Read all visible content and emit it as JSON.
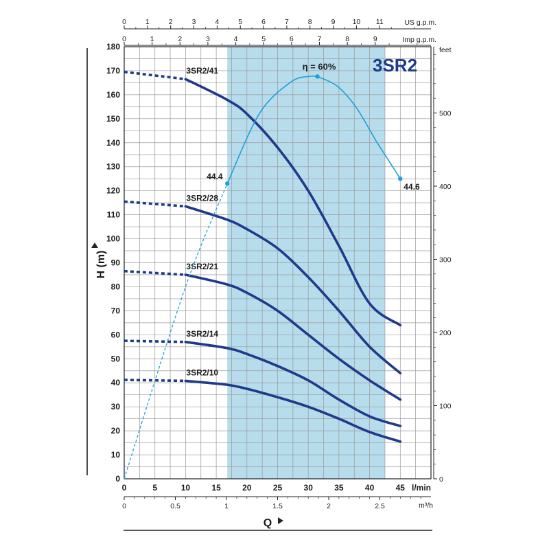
{
  "chart_data": {
    "type": "line",
    "title": "3SR2",
    "ylabel": "H (m)",
    "xlabel": "Q",
    "x_unit_primary": "l/min",
    "x_unit_m3h": "m³/h",
    "x_unit_us": "US g.p.m.",
    "x_unit_imp": "Imp g.p.m.",
    "y_unit_right": "feet",
    "xlim": [
      0,
      50
    ],
    "ylim": [
      0,
      180
    ],
    "grid": true,
    "x_ticks": [
      "0",
      "5",
      "10",
      "15",
      "20",
      "25",
      "30",
      "35",
      "40",
      "45"
    ],
    "y_ticks": [
      "0",
      "10",
      "20",
      "30",
      "40",
      "50",
      "60",
      "70",
      "80",
      "90",
      "100",
      "110",
      "120",
      "130",
      "140",
      "150",
      "160",
      "170",
      "180"
    ],
    "m3h_ticks": [
      "0",
      "0.5",
      "1",
      "1.5",
      "2",
      "2.5"
    ],
    "us_ticks": [
      "0",
      "1",
      "2",
      "3",
      "4",
      "5",
      "6",
      "7",
      "8",
      "9",
      "10",
      "11"
    ],
    "imp_ticks": [
      "0",
      "1",
      "2",
      "3",
      "4",
      "5",
      "6",
      "7",
      "8",
      "9"
    ],
    "feet_ticks": [
      "0",
      "100",
      "200",
      "300",
      "400",
      "500"
    ],
    "shaded_range": [
      16.8,
      42.5
    ],
    "series": [
      {
        "name": "3SR2/41",
        "q_dashed_end": 10,
        "x": [
          0,
          10,
          16.7,
          20,
          25,
          30,
          35,
          40,
          45
        ],
        "values": [
          169.5,
          166.5,
          158,
          152,
          138,
          120,
          97,
          73,
          64
        ]
      },
      {
        "name": "3SR2/28",
        "q_dashed_end": 10,
        "x": [
          0,
          10,
          16.7,
          20,
          25,
          30,
          35,
          40,
          45
        ],
        "values": [
          115.5,
          113.5,
          108,
          104,
          96,
          84,
          70,
          55,
          44
        ]
      },
      {
        "name": "3SR2/21",
        "q_dashed_end": 10,
        "x": [
          0,
          10,
          16.7,
          20,
          25,
          30,
          35,
          40,
          45
        ],
        "values": [
          86.5,
          85,
          81,
          77.5,
          70,
          60,
          50,
          41,
          33
        ]
      },
      {
        "name": "3SR2/14",
        "q_dashed_end": 10,
        "x": [
          0,
          10,
          16.7,
          20,
          25,
          30,
          35,
          40,
          45
        ],
        "values": [
          57.5,
          57,
          54.5,
          52,
          47,
          41,
          33,
          26,
          22
        ]
      },
      {
        "name": "3SR2/10",
        "q_dashed_end": 10,
        "x": [
          0,
          10,
          16.7,
          20,
          25,
          30,
          35,
          40,
          45
        ],
        "values": [
          41.2,
          40.8,
          39.2,
          37.5,
          34,
          30,
          25,
          19.5,
          15.5
        ]
      }
    ],
    "efficiency": {
      "label": "η = 60%",
      "q_dashed_end": 16.8,
      "x": [
        0,
        10,
        16.8,
        22,
        27,
        30,
        32,
        35,
        38,
        41,
        43,
        45
      ],
      "values": [
        0,
        80,
        123,
        152,
        165,
        167.6,
        167,
        163,
        154,
        141,
        133,
        125
      ],
      "annotations": [
        {
          "text": "44.4",
          "x": 16.8,
          "y": 123
        },
        {
          "text": "44.6",
          "x": 45,
          "y": 125
        }
      ],
      "peak": {
        "x": 31.5,
        "y": 167.6
      }
    }
  },
  "colors": {
    "curve": "#1f3a8a",
    "efficiency": "#1ea0d8",
    "shade": "#b7dcec",
    "grid": "#9a9a9a"
  }
}
